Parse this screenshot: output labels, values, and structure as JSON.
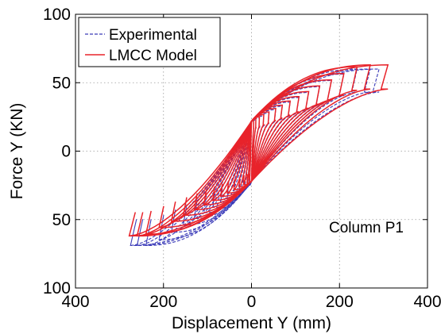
{
  "chart_data": {
    "type": "line",
    "title": "",
    "xlabel": "Displacement Y (mm)",
    "ylabel": "Force Y (KN)",
    "xlim": [
      -400,
      400
    ],
    "ylim": [
      -100,
      100
    ],
    "x_ticks": [
      -400,
      -200,
      0,
      200,
      400
    ],
    "x_tick_labels": [
      "400",
      "200",
      "0",
      "200",
      "400"
    ],
    "y_ticks": [
      -100,
      -50,
      0,
      50,
      100
    ],
    "y_tick_labels": [
      "100",
      "50",
      "0",
      "50",
      "100"
    ],
    "grid": true,
    "legend_position": "top-left",
    "annotation": "Column P1",
    "series": [
      {
        "name": "Experimental",
        "style": "dashed",
        "color": "#3a3ab8",
        "peak_force_pos": 60,
        "peak_force_neg": -69,
        "cycle_amplitudes_pos": [
          5,
          10,
          18,
          28,
          40,
          55,
          70,
          88,
          108,
          130,
          155,
          182,
          210,
          240,
          270,
          290
        ],
        "cycle_amplitudes_neg": [
          -5,
          -10,
          -18,
          -28,
          -40,
          -55,
          -70,
          -88,
          -108,
          -130,
          -155,
          -182,
          -210,
          -240,
          -260,
          -275
        ]
      },
      {
        "name": "LMCC Model",
        "style": "solid",
        "color": "#e8232a",
        "peak_force_pos": 63,
        "peak_force_neg": -62,
        "cycle_amplitudes_pos": [
          5,
          10,
          18,
          28,
          40,
          55,
          70,
          88,
          108,
          130,
          155,
          182,
          210,
          240,
          270,
          310
        ],
        "cycle_amplitudes_neg": [
          -5,
          -10,
          -18,
          -28,
          -40,
          -55,
          -70,
          -88,
          -108,
          -130,
          -155,
          -182,
          -210,
          -240,
          -260,
          -278
        ]
      }
    ]
  }
}
